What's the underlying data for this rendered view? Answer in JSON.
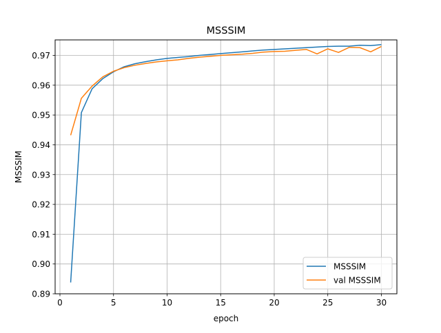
{
  "chart_data": {
    "type": "line",
    "title": "MSSSIM",
    "xlabel": "epoch",
    "ylabel": "MSSSIM",
    "xlim": [
      -0.45,
      31.45
    ],
    "ylim": [
      0.89,
      0.9752
    ],
    "xticks": [
      0,
      5,
      10,
      15,
      20,
      25,
      30
    ],
    "xtick_labels": [
      "0",
      "5",
      "10",
      "15",
      "20",
      "25",
      "30"
    ],
    "yticks": [
      0.89,
      0.9,
      0.91,
      0.92,
      0.93,
      0.94,
      0.95,
      0.96,
      0.97
    ],
    "ytick_labels": [
      "0.89",
      "0.90",
      "0.91",
      "0.92",
      "0.93",
      "0.94",
      "0.95",
      "0.96",
      "0.97"
    ],
    "grid": true,
    "legend_position": "lower-right",
    "x": [
      1,
      2,
      3,
      4,
      5,
      6,
      7,
      8,
      9,
      10,
      11,
      12,
      13,
      14,
      15,
      16,
      17,
      18,
      19,
      20,
      21,
      22,
      23,
      24,
      25,
      26,
      27,
      28,
      29,
      30
    ],
    "series": [
      {
        "name": "MSSSIM",
        "color": "#1f77b4",
        "values": [
          0.8938,
          0.9508,
          0.9588,
          0.9622,
          0.9645,
          0.9662,
          0.9672,
          0.9679,
          0.9685,
          0.969,
          0.9693,
          0.9696,
          0.97,
          0.9703,
          0.9706,
          0.9709,
          0.9712,
          0.9715,
          0.9718,
          0.972,
          0.9722,
          0.9724,
          0.9726,
          0.9728,
          0.973,
          0.9731,
          0.9731,
          0.9734,
          0.9733,
          0.9736
        ]
      },
      {
        "name": "val MSSSIM",
        "color": "#ff7f0e",
        "values": [
          0.9432,
          0.9556,
          0.9597,
          0.9628,
          0.9647,
          0.9659,
          0.9667,
          0.9673,
          0.9678,
          0.9682,
          0.9685,
          0.969,
          0.9694,
          0.9697,
          0.97,
          0.9702,
          0.9704,
          0.9707,
          0.9711,
          0.9713,
          0.9714,
          0.9717,
          0.972,
          0.9705,
          0.9722,
          0.971,
          0.9727,
          0.9726,
          0.9712,
          0.973
        ]
      }
    ]
  }
}
